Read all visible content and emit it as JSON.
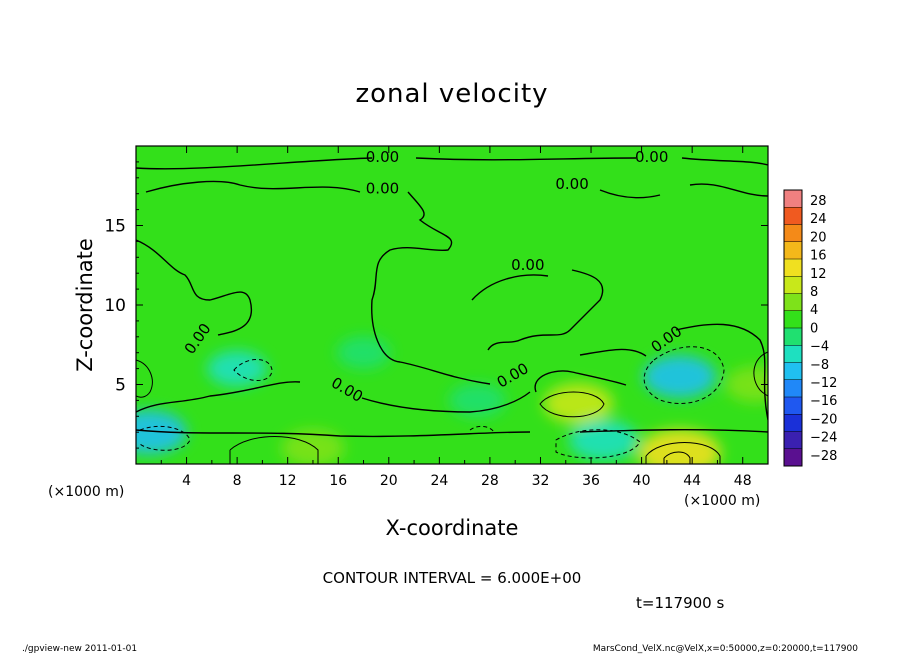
{
  "chart_data": {
    "type": "heatmap",
    "title": "zonal velocity",
    "xlabel": "X-coordinate",
    "ylabel": "Z-coordinate",
    "x_scale_note": "(×1000 m)",
    "y_scale_note": "(×1000 m)",
    "xlim": [
      0,
      50
    ],
    "ylim": [
      0,
      20
    ],
    "x_ticks": [
      4,
      8,
      12,
      16,
      20,
      24,
      28,
      32,
      36,
      40,
      44,
      48
    ],
    "y_ticks": [
      5,
      10,
      15
    ],
    "colorbar": {
      "range": [
        -32,
        32
      ],
      "levels": [
        28,
        24,
        20,
        16,
        12,
        8,
        4,
        0,
        -4,
        -8,
        -12,
        -16,
        -20,
        -24,
        -28
      ]
    },
    "contour_label": "0.00",
    "contour_interval_text": "CONTOUR INTERVAL = 6.000E+00",
    "time_text": "t=117900 s",
    "features": [
      {
        "x": 1,
        "z": 2,
        "value": -10
      },
      {
        "x": 8,
        "z": 6,
        "value": -5
      },
      {
        "x": 14,
        "z": 1,
        "value": 6
      },
      {
        "x": 18,
        "z": 7,
        "value": -3
      },
      {
        "x": 27,
        "z": 4,
        "value": -4
      },
      {
        "x": 35,
        "z": 3.8,
        "value": 8
      },
      {
        "x": 37,
        "z": 1.5,
        "value": -8
      },
      {
        "x": 43,
        "z": 5.5,
        "value": -9
      },
      {
        "x": 43,
        "z": 0.7,
        "value": 12
      },
      {
        "x": 49,
        "z": 5,
        "value": 5
      }
    ]
  },
  "footer": {
    "left": "./gpview-new  2011-01-01",
    "right": "MarsCond_VelX.nc@VelX,x=0:50000,z=0:20000,t=117900"
  }
}
